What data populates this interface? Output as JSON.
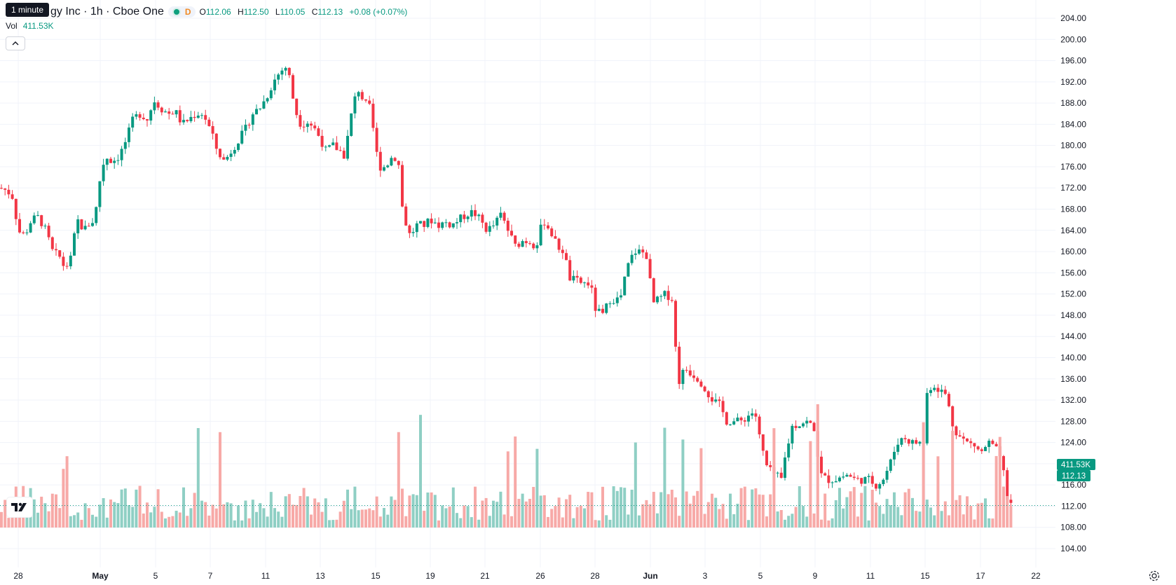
{
  "tooltip": "1 minute",
  "legend": {
    "symbol": "gy Inc · 1h · Cboe One",
    "interval_badge": "D",
    "open_label": "O",
    "open": "112.06",
    "high_label": "H",
    "high": "112.50",
    "low_label": "L",
    "low": "110.05",
    "close_label": "C",
    "close": "112.13",
    "change": "+0.08 (+0.07%)"
  },
  "volume": {
    "label": "Vol",
    "value": "411.53K"
  },
  "price_axis": {
    "last_volume_tag": "411.53K",
    "last_price_tag": "112.13"
  },
  "colors": {
    "up": "#089981",
    "down": "#f23645",
    "vol_up": "#8fcfc4",
    "vol_down": "#f7a9a7",
    "grid": "#f0f3fa"
  },
  "icons": [
    "tradingview-logo-icon",
    "chevron-up-icon",
    "settings-icon"
  ],
  "chart_data": {
    "type": "candlestick",
    "ylim": [
      102,
      206
    ],
    "y_ticks": [
      104,
      108,
      112,
      116,
      120,
      124,
      128,
      132,
      136,
      140,
      144,
      148,
      152,
      156,
      160,
      164,
      168,
      172,
      176,
      180,
      184,
      188,
      192,
      196,
      200,
      204
    ],
    "x_ticks": [
      "28",
      "May",
      "5",
      "7",
      "11",
      "13",
      "15",
      "19",
      "21",
      "26",
      "28",
      "Jun",
      "3",
      "5",
      "9",
      "11",
      "15",
      "17",
      "22"
    ],
    "series": [
      {
        "name": "price",
        "path": [
          [
            0,
            172
          ],
          [
            10,
            171.5
          ],
          [
            20,
            170
          ],
          [
            25,
            164
          ],
          [
            35,
            163
          ],
          [
            45,
            166
          ],
          [
            55,
            166.5
          ],
          [
            65,
            164
          ],
          [
            75,
            160
          ],
          [
            85,
            159
          ],
          [
            92,
            157
          ],
          [
            100,
            158
          ],
          [
            105,
            162
          ],
          [
            110,
            166
          ],
          [
            120,
            164
          ],
          [
            125,
            165
          ],
          [
            135,
            166
          ],
          [
            143,
            174
          ],
          [
            150,
            178
          ],
          [
            160,
            177
          ],
          [
            170,
            178
          ],
          [
            180,
            181
          ],
          [
            190,
            185
          ],
          [
            200,
            186
          ],
          [
            210,
            185
          ],
          [
            220,
            188.5
          ],
          [
            230,
            187
          ],
          [
            240,
            186
          ],
          [
            250,
            186.5
          ],
          [
            260,
            184
          ],
          [
            270,
            185
          ],
          [
            280,
            186
          ],
          [
            290,
            186
          ],
          [
            300,
            183
          ],
          [
            310,
            179
          ],
          [
            320,
            177
          ],
          [
            330,
            179
          ],
          [
            340,
            181
          ],
          [
            350,
            183
          ],
          [
            360,
            186
          ],
          [
            370,
            187
          ],
          [
            380,
            189
          ],
          [
            390,
            192
          ],
          [
            400,
            194
          ],
          [
            410,
            195
          ],
          [
            418,
            189
          ],
          [
            425,
            185
          ],
          [
            430,
            184
          ],
          [
            440,
            184.5
          ],
          [
            450,
            183
          ],
          [
            458,
            181
          ],
          [
            465,
            179
          ],
          [
            475,
            180
          ],
          [
            485,
            179
          ],
          [
            492,
            178
          ],
          [
            500,
            185
          ],
          [
            510,
            191
          ],
          [
            520,
            188
          ],
          [
            528,
            187
          ],
          [
            535,
            181
          ],
          [
            540,
            176
          ],
          [
            550,
            176
          ],
          [
            560,
            178
          ],
          [
            568,
            177.5
          ],
          [
            575,
            167
          ],
          [
            585,
            163
          ],
          [
            595,
            165
          ],
          [
            605,
            165
          ],
          [
            615,
            166
          ],
          [
            625,
            165
          ],
          [
            635,
            165.5
          ],
          [
            645,
            165
          ],
          [
            655,
            166
          ],
          [
            665,
            167
          ],
          [
            675,
            167.5
          ],
          [
            685,
            166
          ],
          [
            695,
            164
          ],
          [
            705,
            165
          ],
          [
            715,
            167
          ],
          [
            725,
            164
          ],
          [
            735,
            161
          ],
          [
            745,
            162
          ],
          [
            755,
            162
          ],
          [
            765,
            161
          ],
          [
            775,
            166
          ],
          [
            785,
            164
          ],
          [
            795,
            161
          ],
          [
            805,
            160
          ],
          [
            812,
            155
          ],
          [
            822,
            154.5
          ],
          [
            832,
            154
          ],
          [
            842,
            154
          ],
          [
            850,
            149
          ],
          [
            860,
            148
          ],
          [
            870,
            151
          ],
          [
            880,
            151
          ],
          [
            885,
            151
          ],
          [
            895,
            157
          ],
          [
            905,
            160
          ],
          [
            915,
            160
          ],
          [
            925,
            159
          ],
          [
            930,
            150
          ],
          [
            940,
            151
          ],
          [
            950,
            152
          ],
          [
            960,
            151
          ],
          [
            967,
            135
          ],
          [
            977,
            138
          ],
          [
            987,
            137
          ],
          [
            997,
            136
          ],
          [
            1007,
            134
          ],
          [
            1017,
            132
          ],
          [
            1027,
            131
          ],
          [
            1037,
            128
          ],
          [
            1047,
            128
          ],
          [
            1057,
            128
          ],
          [
            1067,
            129
          ],
          [
            1077,
            130
          ],
          [
            1085,
            124
          ],
          [
            1095,
            119
          ],
          [
            1105,
            118
          ],
          [
            1115,
            117
          ],
          [
            1120,
            121
          ],
          [
            1130,
            127
          ],
          [
            1140,
            127.5
          ],
          [
            1150,
            128
          ],
          [
            1160,
            127
          ],
          [
            1165,
            124
          ],
          [
            1170,
            118
          ],
          [
            1180,
            117
          ],
          [
            1190,
            117
          ],
          [
            1200,
            117.5
          ],
          [
            1210,
            118
          ],
          [
            1220,
            117
          ],
          [
            1230,
            117
          ],
          [
            1240,
            117
          ],
          [
            1250,
            116
          ],
          [
            1260,
            117
          ],
          [
            1270,
            120
          ],
          [
            1280,
            124
          ],
          [
            1290,
            125
          ],
          [
            1300,
            124
          ],
          [
            1310,
            124
          ],
          [
            1318,
            124
          ],
          [
            1322,
            133
          ],
          [
            1330,
            135
          ],
          [
            1340,
            134
          ],
          [
            1350,
            133
          ],
          [
            1360,
            127
          ],
          [
            1370,
            125
          ],
          [
            1380,
            124
          ],
          [
            1390,
            123.5
          ],
          [
            1400,
            122
          ],
          [
            1410,
            124
          ],
          [
            1420,
            123
          ],
          [
            1430,
            120
          ],
          [
            1438,
            113
          ],
          [
            1445,
            112.13
          ]
        ]
      },
      {
        "name": "volume",
        "range": [
          0,
          1.8
        ]
      }
    ]
  }
}
